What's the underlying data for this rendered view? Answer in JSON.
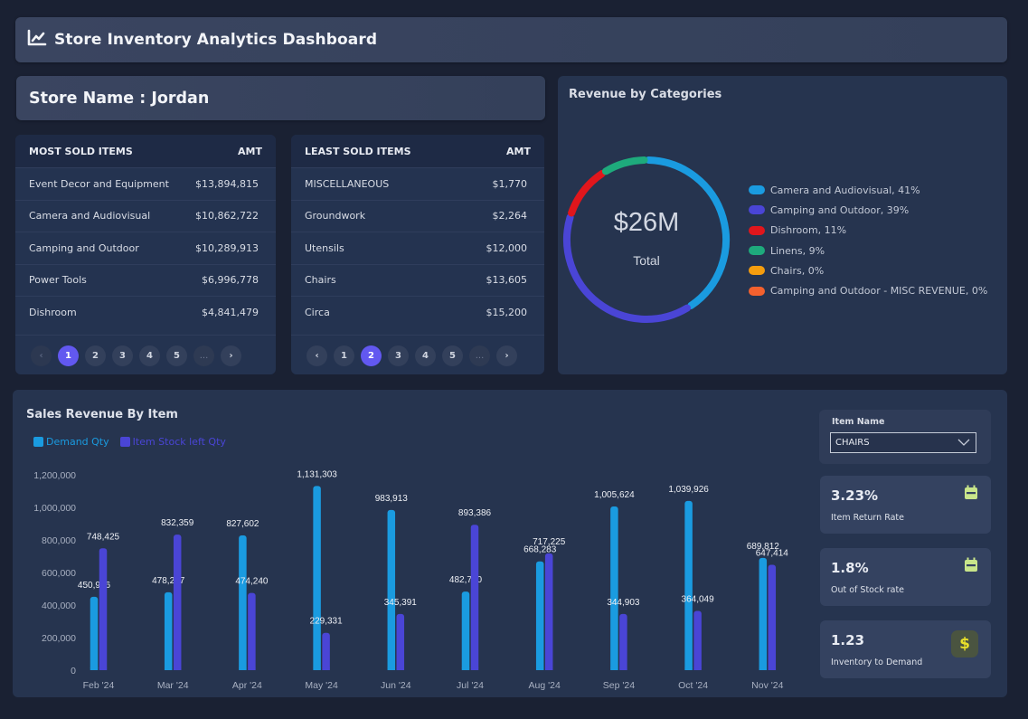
{
  "header": {
    "title": "Store Inventory Analytics Dashboard",
    "icon": "line-chart-icon"
  },
  "store": {
    "label": "Store Name : Jordan"
  },
  "most_sold": {
    "header_item": "MOST SOLD ITEMS",
    "header_amt": "AMT",
    "rows": [
      {
        "item": "Event Decor and Equipment",
        "amt": "$13,894,815"
      },
      {
        "item": "Camera and Audiovisual",
        "amt": "$10,862,722"
      },
      {
        "item": "Camping and Outdoor",
        "amt": "$10,289,913"
      },
      {
        "item": "Power Tools",
        "amt": "$6,996,778"
      },
      {
        "item": "Dishroom",
        "amt": "$4,841,479"
      }
    ],
    "pagination": {
      "prev": "‹",
      "pages": [
        "1",
        "2",
        "3",
        "4",
        "5"
      ],
      "ellipsis": "...",
      "next": "›",
      "active": "1"
    }
  },
  "least_sold": {
    "header_item": "LEAST SOLD ITEMS",
    "header_amt": "AMT",
    "rows": [
      {
        "item": "MISCELLANEOUS",
        "amt": "$1,770"
      },
      {
        "item": "Groundwork",
        "amt": "$2,264"
      },
      {
        "item": "Utensils",
        "amt": "$12,000"
      },
      {
        "item": "Chairs",
        "amt": "$13,605"
      },
      {
        "item": "Circa",
        "amt": "$15,200"
      }
    ],
    "pagination": {
      "prev": "‹",
      "pages": [
        "1",
        "2",
        "3",
        "4",
        "5"
      ],
      "ellipsis": "...",
      "next": "›",
      "active": "2"
    }
  },
  "revenue_by_categories": {
    "title": "Revenue by Categories",
    "center_value": "$26M",
    "center_label": "Total"
  },
  "sales_revenue": {
    "title": "Sales Revenue By Item"
  },
  "item_filter": {
    "label": "Item Name",
    "selected": "CHAIRS"
  },
  "kpis": [
    {
      "value": "3.23%",
      "label": "Item Return Rate",
      "icon": "calendar-icon",
      "icon_color": "#c8e58a"
    },
    {
      "value": "1.8%",
      "label": "Out of Stock rate",
      "icon": "calendar-icon",
      "icon_color": "#c8e58a"
    },
    {
      "value": "1.23",
      "label": "Inventory to Demand",
      "icon": "dollar-icon",
      "icon_color": "#e8df2a"
    }
  ],
  "chart_data": [
    {
      "type": "pie",
      "variant": "donut",
      "title": "Revenue by Categories",
      "center_text": "$26M",
      "center_subtext": "Total",
      "legend_position": "right",
      "slices": [
        {
          "label": "Camera and Audiovisual",
          "percent": 41,
          "legend": "Camera and Audiovisual, 41%",
          "color": "#1a9be0"
        },
        {
          "label": "Camping and Outdoor",
          "percent": 39,
          "legend": "Camping and Outdoor, 39%",
          "color": "#4a45d6"
        },
        {
          "label": "Dishroom",
          "percent": 11,
          "legend": "Dishroom, 11%",
          "color": "#e0161c"
        },
        {
          "label": "Linens",
          "percent": 9,
          "legend": "Linens, 9%",
          "color": "#1eaa7c"
        },
        {
          "label": "Chairs",
          "percent": 0,
          "legend": "Chairs, 0%",
          "color": "#f59d0e"
        },
        {
          "label": "Camping and Outdoor - MISC REVENUE",
          "percent": 0,
          "legend": "Camping and Outdoor - MISC REVENUE, 0%",
          "color": "#f4612e"
        }
      ]
    },
    {
      "type": "bar",
      "title": "Sales Revenue By Item",
      "xlabel": "",
      "ylabel": "",
      "ylim": [
        0,
        1200000
      ],
      "yticks": [
        0,
        200000,
        400000,
        600000,
        800000,
        1000000,
        1200000
      ],
      "ytick_labels": [
        "0",
        "200,000",
        "400,000",
        "600,000",
        "800,000",
        "1,000,000",
        "1,200,000"
      ],
      "grid": false,
      "legend_position": "top-left",
      "categories": [
        "Feb '24",
        "Mar '24",
        "Apr '24",
        "May '24",
        "Jun '24",
        "Jul '24",
        "Aug '24",
        "Sep '24",
        "Oct '24",
        "Nov '24"
      ],
      "series": [
        {
          "name": "Demand Qty",
          "color": "#1a9be0",
          "legend_text_color": "#1a9be0",
          "values": [
            450966,
            478207,
            827602,
            1131303,
            983913,
            482730,
            668283,
            1005624,
            1039926,
            689812
          ],
          "labels": [
            "450,966",
            "478,207",
            "827,602",
            "1,131,303",
            "983,913",
            "482,730",
            "668,283",
            "1,005,624",
            "1,039,926",
            "689,812"
          ]
        },
        {
          "name": "Item Stock left Qty",
          "color": "#4a45d6",
          "legend_text_color": "#4a45d6",
          "values": [
            748425,
            832359,
            474240,
            229331,
            345391,
            893386,
            717225,
            344903,
            364049,
            647414
          ],
          "labels": [
            "748,425",
            "832,359",
            "474,240",
            "229,331",
            "345,391",
            "893,386",
            "717,225",
            "344,903",
            "364,049",
            "647,414"
          ]
        }
      ]
    }
  ]
}
